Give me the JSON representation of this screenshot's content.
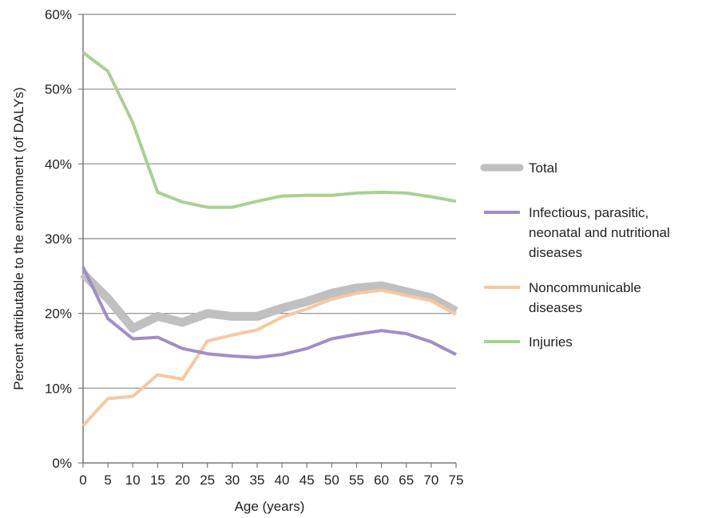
{
  "chart_data": {
    "type": "line",
    "xlabel": "Age (years)",
    "ylabel": "Percent attributable to the environment (of DALYs)",
    "x": [
      0,
      5,
      10,
      15,
      20,
      25,
      30,
      35,
      40,
      45,
      50,
      55,
      60,
      65,
      70,
      75
    ],
    "xticks": [
      "0",
      "5",
      "10",
      "15",
      "20",
      "25",
      "30",
      "35",
      "40",
      "45",
      "50",
      "55",
      "60",
      "65",
      "70",
      "75"
    ],
    "yticks": [
      "0%",
      "10%",
      "20%",
      "30%",
      "40%",
      "50%",
      "60%"
    ],
    "ylim": [
      0,
      60
    ],
    "xlim": [
      0,
      75
    ],
    "grid": "horizontal",
    "legend_position": "right",
    "series": [
      {
        "name": "Total",
        "color": "#c0c0c0",
        "values": [
          25.3,
          22.0,
          18.0,
          19.6,
          18.8,
          20.0,
          19.6,
          19.6,
          20.7,
          21.6,
          22.7,
          23.4,
          23.7,
          22.9,
          22.1,
          20.3
        ]
      },
      {
        "name": "Infectious, parasitic, neonatal and nutritional diseases",
        "legend_lines": [
          "Infectious, parasitic,",
          "neonatal and nutritional",
          "diseases"
        ],
        "color": "#a08dc8",
        "values": [
          26.2,
          19.3,
          16.6,
          16.8,
          15.3,
          14.6,
          14.3,
          14.1,
          14.5,
          15.3,
          16.6,
          17.2,
          17.7,
          17.3,
          16.2,
          14.5
        ]
      },
      {
        "name": "Noncommunicable diseases",
        "legend_lines": [
          "Noncommunicable",
          "diseases"
        ],
        "color": "#f7c8a0",
        "values": [
          5.0,
          8.6,
          8.9,
          11.8,
          11.2,
          16.3,
          17.1,
          17.8,
          19.5,
          20.6,
          21.9,
          22.7,
          23.1,
          22.4,
          21.7,
          19.9
        ]
      },
      {
        "name": "Injuries",
        "color": "#a9d18e",
        "values": [
          54.9,
          52.4,
          45.5,
          36.2,
          34.9,
          34.2,
          34.2,
          35.0,
          35.7,
          35.8,
          35.8,
          36.1,
          36.2,
          36.1,
          35.6,
          35.0
        ]
      }
    ]
  }
}
